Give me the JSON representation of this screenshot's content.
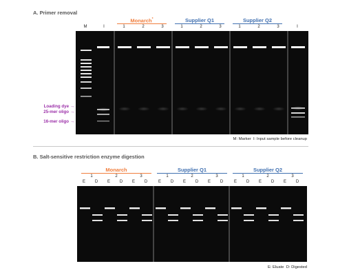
{
  "colors": {
    "monarch": "#f07d3c",
    "supplier": "#3f6fb0",
    "annotation": "#9b2fa8",
    "gel_bg": "#0b0b0b",
    "band": "#f2f2f2",
    "separator": "#9a9a9a"
  },
  "panel_a": {
    "title": "A. Primer removal",
    "groups": [
      {
        "label": "Monarch",
        "superscript": "*",
        "color_key": "monarch",
        "lanes": [
          "1",
          "2",
          "3"
        ]
      },
      {
        "label": "Supplier Q1",
        "color_key": "supplier",
        "lanes": [
          "1",
          "2",
          "3"
        ]
      },
      {
        "label": "Supplier Q2",
        "color_key": "supplier",
        "lanes": [
          "1",
          "2",
          "3"
        ]
      }
    ],
    "lane_m": "M",
    "lane_i": "I",
    "annotations": [
      {
        "label": "Loading dye",
        "arrow": "→"
      },
      {
        "label": "25-mer oligo",
        "arrow": "→"
      },
      {
        "label": "16-mer oligo",
        "arrow": "→"
      }
    ],
    "legend": {
      "marker": "M: Marker",
      "input": "I: Input sample before cleanup"
    }
  },
  "panel_b": {
    "title": "B. Salt-sensitive restriction enzyme digestion",
    "groups": [
      {
        "label": "Monarch",
        "color_key": "monarch",
        "samples": [
          "1",
          "2",
          "3"
        ]
      },
      {
        "label": "Supplier Q1",
        "color_key": "supplier",
        "samples": [
          "1",
          "2",
          "3"
        ]
      },
      {
        "label": "Supplier Q2",
        "color_key": "supplier",
        "samples": [
          "1",
          "2",
          "3"
        ]
      }
    ],
    "lane_e": "E",
    "lane_d": "D",
    "legend": {
      "eluate": "E: Eluate",
      "digested": "D: Digested"
    }
  }
}
